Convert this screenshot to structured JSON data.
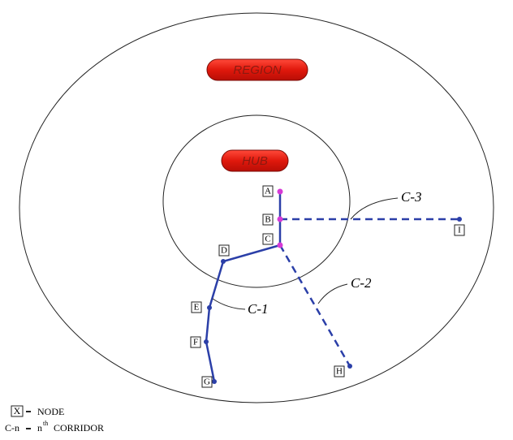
{
  "zones": {
    "region": "REGION",
    "hub": "HUB"
  },
  "nodes": [
    "A",
    "B",
    "C",
    "D",
    "E",
    "F",
    "G",
    "H",
    "I"
  ],
  "corridors": [
    "C-1",
    "C-2",
    "C-3"
  ],
  "legend": {
    "node_symbol": "X",
    "node_text": "NODE",
    "corridor_symbol": "C-n",
    "corridor_n": "n",
    "corridor_sup": "th",
    "corridor_text": "CORRIDOR"
  }
}
